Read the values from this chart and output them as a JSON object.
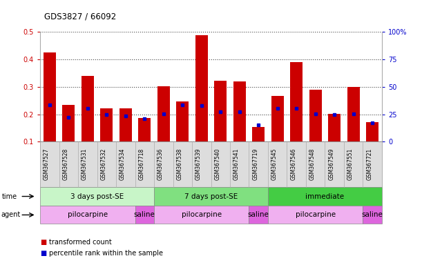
{
  "title": "GDS3827 / 66092",
  "samples": [
    "GSM367527",
    "GSM367528",
    "GSM367531",
    "GSM367532",
    "GSM367534",
    "GSM367718",
    "GSM367536",
    "GSM367538",
    "GSM367539",
    "GSM367540",
    "GSM367541",
    "GSM367719",
    "GSM367545",
    "GSM367546",
    "GSM367548",
    "GSM367549",
    "GSM367551",
    "GSM367721"
  ],
  "red_values": [
    0.425,
    0.233,
    0.34,
    0.222,
    0.222,
    0.186,
    0.302,
    0.247,
    0.487,
    0.322,
    0.32,
    0.153,
    0.268,
    0.39,
    0.29,
    0.202,
    0.3,
    0.171
  ],
  "blue_values": [
    0.235,
    0.19,
    0.222,
    0.2,
    0.193,
    0.183,
    0.202,
    0.234,
    0.232,
    0.21,
    0.21,
    0.161,
    0.222,
    0.222,
    0.202,
    0.2,
    0.202,
    0.17
  ],
  "time_groups": [
    {
      "label": "3 days post-SE",
      "start": 0,
      "end": 5,
      "color": "#c8f5c8"
    },
    {
      "label": "7 days post-SE",
      "start": 6,
      "end": 11,
      "color": "#80e080"
    },
    {
      "label": "immediate",
      "start": 12,
      "end": 17,
      "color": "#44cc44"
    }
  ],
  "agent_groups": [
    {
      "label": "pilocarpine",
      "start": 0,
      "end": 4,
      "color": "#f0b0f0"
    },
    {
      "label": "saline",
      "start": 5,
      "end": 5,
      "color": "#dd66dd"
    },
    {
      "label": "pilocarpine",
      "start": 6,
      "end": 10,
      "color": "#f0b0f0"
    },
    {
      "label": "saline",
      "start": 11,
      "end": 11,
      "color": "#dd66dd"
    },
    {
      "label": "pilocarpine",
      "start": 12,
      "end": 16,
      "color": "#f0b0f0"
    },
    {
      "label": "saline",
      "start": 17,
      "end": 17,
      "color": "#dd66dd"
    }
  ],
  "ylim_left": [
    0.1,
    0.5
  ],
  "ylim_right": [
    0,
    100
  ],
  "yticks_left": [
    0.1,
    0.2,
    0.3,
    0.4,
    0.5
  ],
  "yticks_right": [
    0,
    25,
    50,
    75,
    100
  ],
  "bar_color": "#cc0000",
  "blue_color": "#0000cc",
  "background_color": "#ffffff",
  "label_color_left": "#cc0000",
  "label_color_right": "#0000cc",
  "legend_items": [
    "transformed count",
    "percentile rank within the sample"
  ],
  "tick_label_bg": "#dddddd"
}
